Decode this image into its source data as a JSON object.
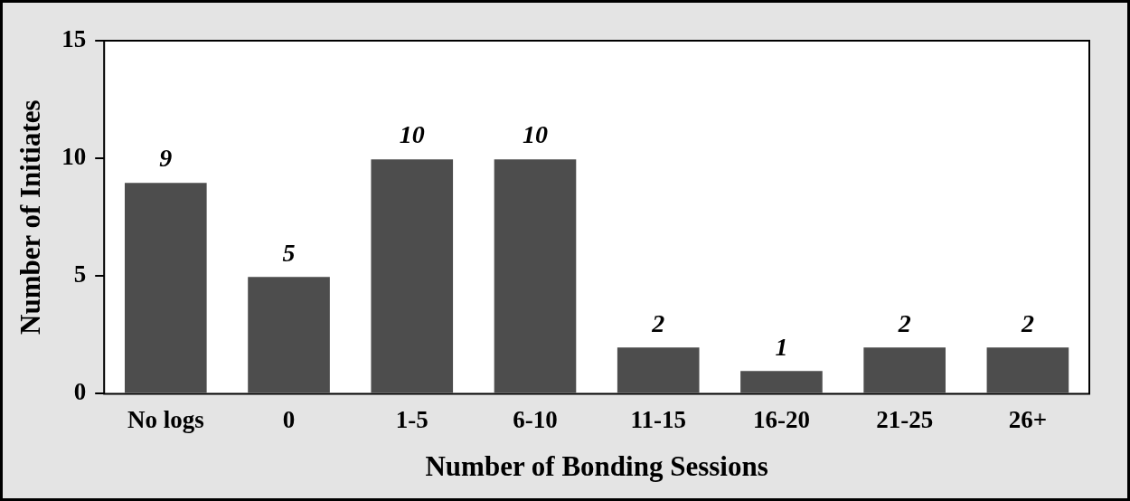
{
  "chart_data": {
    "type": "bar",
    "xlabel": "Number of Bonding Sessions",
    "ylabel": "Number of Initiates",
    "categories": [
      "No logs",
      "0",
      "1-5",
      "6-10",
      "11-15",
      "16-20",
      "21-25",
      "26+"
    ],
    "values": [
      9,
      5,
      10,
      10,
      2,
      1,
      2,
      2
    ],
    "color": "#4d4d4d",
    "ylim": [
      0,
      15
    ],
    "yticks": [
      0,
      5,
      10,
      15
    ],
    "data_labels": true
  }
}
